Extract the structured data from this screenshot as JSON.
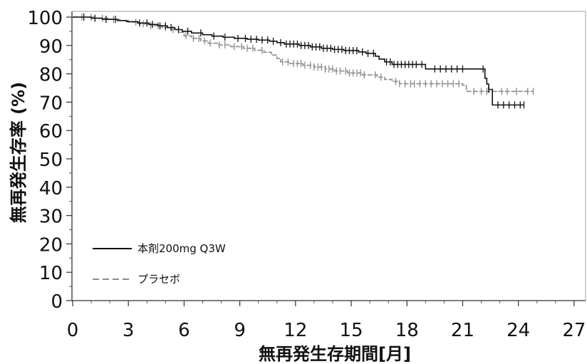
{
  "chart_data": {
    "type": "line",
    "step": true,
    "xlabel": "無再発生存期間[月]",
    "ylabel": "無再発生存率 (%)",
    "xlim": [
      0,
      27
    ],
    "ylim": [
      0,
      100
    ],
    "x_ticks": [
      0,
      3,
      6,
      9,
      12,
      15,
      18,
      21,
      24,
      27
    ],
    "y_ticks": [
      0,
      10,
      20,
      30,
      40,
      50,
      60,
      70,
      80,
      90,
      100
    ],
    "grid": false,
    "legend": "bottom-left",
    "series": [
      {
        "name": "本剤200mg Q3W",
        "color": "#111111",
        "dashed": false,
        "x": [
          0,
          1.0,
          1.6,
          2.4,
          2.9,
          3.5,
          4.1,
          4.6,
          5.1,
          5.5,
          5.9,
          6.4,
          7.0,
          7.5,
          8.1,
          8.7,
          9.4,
          10.0,
          10.6,
          11.0,
          11.4,
          12.2,
          12.8,
          13.4,
          14.0,
          14.6,
          15.4,
          15.8,
          16.3,
          16.5,
          16.8,
          17.2,
          19.0,
          22.2,
          22.3,
          22.4,
          22.6
        ],
        "y": [
          100,
          99.6,
          99.2,
          98.8,
          98.4,
          97.9,
          97.4,
          96.9,
          96.3,
          95.6,
          95.0,
          94.4,
          93.8,
          93.3,
          92.9,
          92.5,
          92.2,
          91.9,
          91.5,
          91.0,
          90.5,
          90.0,
          89.5,
          89.0,
          88.6,
          88.2,
          87.7,
          87.2,
          86.2,
          85.2,
          84.2,
          83.3,
          81.7,
          78.4,
          76.4,
          74.5,
          69.0
        ],
        "end_x": 24.3,
        "censored_x": [
          0.6,
          1.2,
          1.8,
          2.3,
          3.6,
          4.0,
          4.3,
          4.7,
          5.0,
          5.3,
          5.7,
          6.2,
          6.9,
          7.6,
          8.2,
          8.9,
          9.3,
          9.6,
          9.9,
          10.2,
          10.5,
          10.8,
          11.2,
          11.5,
          11.7,
          11.9,
          12.1,
          12.3,
          12.5,
          12.7,
          12.9,
          13.1,
          13.3,
          13.5,
          13.7,
          13.9,
          14.1,
          14.3,
          14.5,
          14.7,
          14.9,
          15.1,
          15.3,
          15.6,
          15.9,
          16.2,
          16.9,
          17.1,
          17.3,
          17.5,
          17.7,
          17.9,
          18.1,
          18.3,
          18.5,
          18.8,
          19.5,
          19.8,
          20.1,
          20.4,
          20.7,
          21.0,
          22.1,
          22.4,
          22.9,
          23.2,
          23.5,
          23.8,
          24.1,
          24.3
        ]
      },
      {
        "name": "プラセボ",
        "color": "#8c8c8c",
        "dashed": true,
        "x": [
          0,
          1.2,
          2.0,
          2.6,
          3.0,
          3.6,
          4.2,
          4.8,
          5.3,
          5.7,
          6.0,
          6.4,
          6.9,
          7.3,
          7.8,
          8.5,
          9.2,
          9.8,
          10.3,
          10.7,
          11.0,
          11.2,
          11.7,
          12.4,
          13.0,
          13.6,
          14.1,
          14.8,
          15.6,
          16.4,
          16.8,
          17.2,
          17.6,
          21.0,
          21.2
        ],
        "y": [
          100,
          99.6,
          99.2,
          98.8,
          98.2,
          97.6,
          97.0,
          96.3,
          95.6,
          94.6,
          93.4,
          92.5,
          91.6,
          90.8,
          90.2,
          89.6,
          89.0,
          88.3,
          87.6,
          86.6,
          85.4,
          84.2,
          83.6,
          83.0,
          82.4,
          81.7,
          81.0,
          80.3,
          79.6,
          78.8,
          78.0,
          77.3,
          76.5,
          76.0,
          73.8
        ],
        "end_x": 24.8,
        "censored_x": [
          0.5,
          1.0,
          1.6,
          2.2,
          3.4,
          3.8,
          4.2,
          4.6,
          5.0,
          5.4,
          6.1,
          6.5,
          6.8,
          7.1,
          7.4,
          7.9,
          8.2,
          8.7,
          9.1,
          9.4,
          9.7,
          10.2,
          11.3,
          11.6,
          11.9,
          12.1,
          12.3,
          12.5,
          12.8,
          13.0,
          13.2,
          13.4,
          13.6,
          13.8,
          14.0,
          14.2,
          14.4,
          14.7,
          14.9,
          15.1,
          15.3,
          15.5,
          15.7,
          16.3,
          16.6,
          17.4,
          17.6,
          17.9,
          18.2,
          18.4,
          18.7,
          19.0,
          19.3,
          19.6,
          19.9,
          20.2,
          20.5,
          20.8,
          21.6,
          22.0,
          22.3,
          23.1,
          23.4,
          23.9,
          24.5,
          24.8
        ]
      }
    ]
  }
}
